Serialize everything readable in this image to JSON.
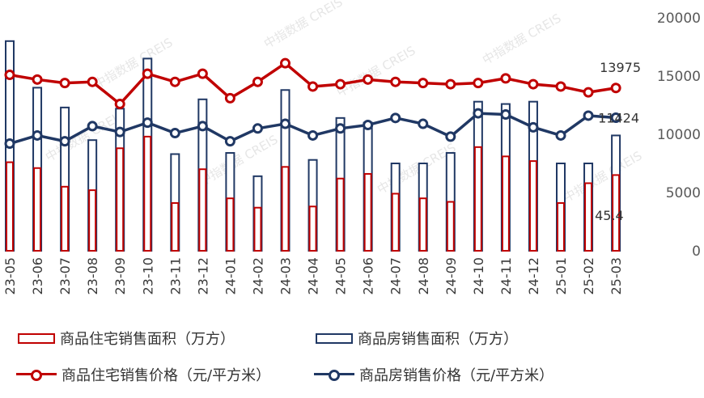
{
  "chart_data": {
    "type": "bar+line",
    "categories": [
      "23-05",
      "23-06",
      "23-07",
      "23-08",
      "23-09",
      "23-10",
      "23-11",
      "23-12",
      "24-01",
      "24-02",
      "24-03",
      "24-04",
      "24-05",
      "24-06",
      "24-07",
      "24-08",
      "24-09",
      "24-10",
      "24-11",
      "24-12",
      "25-01",
      "25-02",
      "25-03"
    ],
    "y_right_ticks": [
      "0",
      "5000",
      "10000",
      "15000",
      "20000"
    ],
    "ylim": [
      0,
      20000
    ],
    "series": [
      {
        "name": "商品住宅销售面积（万方）",
        "kind": "bar",
        "values": [
          7600,
          7100,
          5500,
          5200,
          8800,
          9800,
          4100,
          7000,
          4500,
          3700,
          7200,
          3800,
          6200,
          6600,
          4900,
          4500,
          4200,
          8900,
          8100,
          7700,
          4100,
          5800,
          6500
        ]
      },
      {
        "name": "商品房销售面积（万方）",
        "kind": "bar",
        "values": [
          18000,
          14000,
          12300,
          9500,
          12200,
          16500,
          8300,
          13000,
          8400,
          6400,
          13800,
          7800,
          11400,
          11000,
          7500,
          7500,
          8400,
          12800,
          12600,
          12800,
          7500,
          7500,
          9900
        ]
      },
      {
        "name": "商品住宅销售价格（元/平方米）",
        "kind": "line",
        "values": [
          15100,
          14700,
          14400,
          14500,
          12600,
          15200,
          14500,
          15200,
          13100,
          14500,
          16100,
          14100,
          14300,
          14700,
          14500,
          14400,
          14300,
          14400,
          14800,
          14300,
          14100,
          13600,
          13975
        ]
      },
      {
        "name": "商品房销售价格（元/平方米）",
        "kind": "line",
        "values": [
          9200,
          9900,
          9400,
          10700,
          10200,
          11000,
          10100,
          10700,
          9400,
          10500,
          10900,
          9900,
          10500,
          10800,
          11400,
          10900,
          9800,
          11800,
          11700,
          10600,
          9900,
          11600,
          11424
        ]
      }
    ],
    "data_labels": {
      "house_price_last": "13975",
      "all_price_last": "11424",
      "area_last": "45.4"
    },
    "colors": {
      "red": "#C00000",
      "navy": "#203864"
    }
  },
  "legend": {
    "item1": "商品住宅销售面积（万方）",
    "item2": "商品房销售面积（万方）",
    "item3": "商品住宅销售价格（元/平方米）",
    "item4": "商品房销售价格（元/平方米）"
  }
}
